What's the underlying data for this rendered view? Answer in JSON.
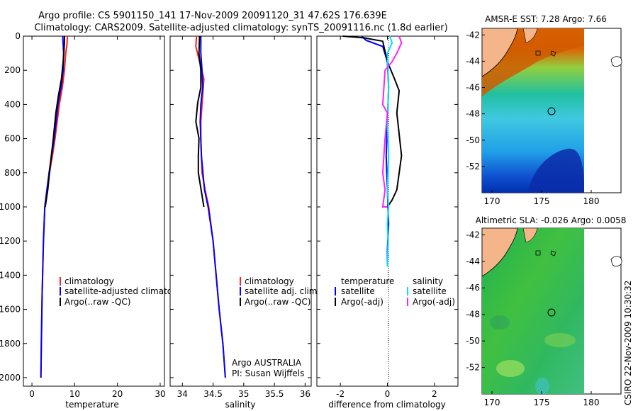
{
  "header": {
    "line1": "Argo profile: CS 5901150_141 17-Nov-2009 20091120_31 47.62S 176.639E",
    "line2": "Climatology: CARS2009. Satellite-adjusted climatology: synTS_20091116.nc (1.8d earlier)"
  },
  "colors": {
    "clim": "#ff2020",
    "sat": "#0000ff",
    "argo": "#000000",
    "sal_sat": "#00e0ff",
    "sal_argo": "#ff20ff"
  },
  "chart_data": [
    {
      "id": "temp",
      "type": "line",
      "xlabel": "temperature",
      "ylabel": "",
      "xlim": [
        -2,
        31
      ],
      "ylim": [
        0,
        2050
      ],
      "y_reversed": true,
      "xticks": [
        0,
        10,
        20,
        30
      ],
      "yticks": [
        0,
        200,
        400,
        600,
        800,
        1000,
        1200,
        1400,
        1600,
        1800,
        2000
      ],
      "legend": {
        "position": "lower-right",
        "entries": [
          {
            "label": "climatology",
            "color": "#ff2020"
          },
          {
            "label": "satellite-adjusted climatology",
            "color": "#0000ff"
          },
          {
            "label": "Argo(..raw -QC)",
            "color": "#000000"
          }
        ]
      },
      "series": [
        {
          "name": "climatology",
          "color": "#ff2020",
          "x": [
            8.3,
            8.2,
            7.9,
            7.6,
            7.1,
            6.4,
            5.4,
            4.8,
            4.1,
            3.5,
            3.0,
            2.7,
            2.4,
            2.2,
            2.1
          ],
          "y": [
            0,
            50,
            100,
            200,
            300,
            400,
            600,
            700,
            800,
            900,
            1000,
            1200,
            1500,
            1800,
            2000
          ]
        },
        {
          "name": "satellite-adjusted",
          "color": "#0000ff",
          "x": [
            7.2,
            7.3,
            7.4,
            7.3,
            6.8,
            6.1,
            5.2,
            4.6,
            4.0,
            3.5,
            3.0,
            2.7,
            2.4,
            2.2,
            2.1
          ],
          "y": [
            0,
            50,
            100,
            200,
            300,
            400,
            600,
            700,
            800,
            900,
            1000,
            1200,
            1500,
            1800,
            2000
          ]
        },
        {
          "name": "Argo",
          "color": "#000000",
          "x": [
            7.6,
            7.6,
            7.5,
            7.3,
            6.9,
            6.2,
            5.6,
            5.0,
            4.3,
            3.7,
            3.1
          ],
          "y": [
            0,
            40,
            80,
            150,
            250,
            350,
            450,
            600,
            750,
            900,
            1000
          ]
        }
      ]
    },
    {
      "id": "salinity",
      "type": "line",
      "xlabel": "salinity",
      "ylabel": "",
      "xlim": [
        33.8,
        36.1
      ],
      "ylim": [
        0,
        2050
      ],
      "y_reversed": true,
      "xticks": [
        34,
        34.5,
        35,
        35.5,
        36
      ],
      "legend": {
        "position": "lower-right",
        "entries": [
          {
            "label": "climatology",
            "color": "#ff2020"
          },
          {
            "label": "satellite adj. clim.",
            "color": "#0000ff"
          },
          {
            "label": "Argo(..raw -QC)",
            "color": "#000000"
          }
        ]
      },
      "annotation": {
        "line1": "Argo AUSTRALIA",
        "line2": "PI: Susan Wijffels"
      },
      "series": [
        {
          "name": "climatology",
          "color": "#ff2020",
          "x": [
            34.23,
            34.22,
            34.28,
            34.35,
            34.33,
            34.3,
            34.3,
            34.32,
            34.37,
            34.43,
            34.5,
            34.55,
            34.6,
            34.66,
            34.7
          ],
          "y": [
            0,
            60,
            150,
            250,
            350,
            500,
            600,
            800,
            900,
            1000,
            1200,
            1400,
            1600,
            1800,
            2000
          ]
        },
        {
          "name": "satellite-adjusted",
          "color": "#0000ff",
          "x": [
            34.3,
            34.3,
            34.32,
            34.33,
            34.3,
            34.29,
            34.31,
            34.36,
            34.42,
            34.5,
            34.55,
            34.6,
            34.66,
            34.7
          ],
          "y": [
            0,
            100,
            200,
            300,
            400,
            500,
            700,
            900,
            1000,
            1200,
            1400,
            1600,
            1800,
            2000
          ]
        },
        {
          "name": "Argo",
          "color": "#000000",
          "x": [
            34.28,
            34.27,
            34.3,
            34.3,
            34.25,
            34.22,
            34.27,
            34.26,
            34.26,
            34.35
          ],
          "y": [
            0,
            100,
            200,
            300,
            390,
            500,
            600,
            700,
            800,
            1000
          ]
        }
      ]
    },
    {
      "id": "difference",
      "type": "line",
      "xlabel": "difference from climatology",
      "ylabel": "",
      "xlim": [
        -3,
        3
      ],
      "ylim": [
        0,
        2050
      ],
      "y_reversed": true,
      "xticks": [
        -2,
        0,
        2
      ],
      "legend": {
        "position": "lower-middle",
        "groups": [
          {
            "title": "temperature",
            "entries": [
              {
                "label": "satellite",
                "color": "#0000ff"
              },
              {
                "label": "Argo(-adj)",
                "color": "#000000"
              }
            ]
          },
          {
            "title": "salinity",
            "entries": [
              {
                "label": "satellite",
                "color": "#00e0ff"
              },
              {
                "label": "Argo(-adj)",
                "color": "#ff20ff"
              }
            ]
          }
        ]
      },
      "series": [
        {
          "name": "temperature satellite",
          "color": "#0000ff",
          "x": [
            -1.1,
            -0.9,
            -0.2,
            0.0,
            0.05,
            0.0,
            -0.05,
            0.0,
            0.05,
            0.0,
            0.0
          ],
          "y": [
            0,
            25,
            60,
            150,
            300,
            500,
            700,
            900,
            1100,
            1250,
            1340
          ]
        },
        {
          "name": "temperature Argo",
          "color": "#000000",
          "x": [
            -1.9,
            -1.0,
            -0.2,
            0.0,
            0.3,
            0.5,
            0.4,
            0.6,
            0.5,
            0.4,
            0.2,
            0.0
          ],
          "y": [
            0,
            10,
            30,
            150,
            250,
            320,
            450,
            700,
            800,
            900,
            960,
            1000
          ]
        },
        {
          "name": "salinity satellite",
          "color": "#00e0ff",
          "x": [
            0.1,
            0.2,
            0.0,
            0.05,
            0.0,
            0.05,
            0.0,
            0.05,
            0.0,
            0.03,
            0.0
          ],
          "y": [
            0,
            40,
            100,
            300,
            500,
            700,
            900,
            1000,
            1100,
            1200,
            1350
          ]
        },
        {
          "name": "salinity Argo",
          "color": "#ff20ff",
          "x": [
            0.5,
            0.6,
            0.4,
            0.2,
            -0.1,
            -0.2,
            0.0,
            -0.1,
            -0.2,
            -0.1,
            -0.2,
            0.0
          ],
          "y": [
            0,
            40,
            100,
            150,
            200,
            400,
            450,
            600,
            800,
            900,
            1000,
            1000
          ]
        }
      ]
    },
    {
      "id": "sst-map",
      "type": "heatmap",
      "title": "AMSR-E SST: 7.28 Argo: 7.66",
      "xlim": [
        169,
        183
      ],
      "ylim": [
        -54,
        -41.5
      ],
      "xticks": [
        170,
        175,
        180
      ],
      "yticks": [
        -42,
        -44,
        -46,
        -48,
        -50,
        -52
      ],
      "marker": {
        "lon": 176.6,
        "lat": -47.6
      }
    },
    {
      "id": "sla-map",
      "type": "heatmap",
      "title": "Altimetric SLA: -0.026 Argo: 0.0058",
      "xlim": [
        169,
        183
      ],
      "ylim": [
        -54,
        -41.5
      ],
      "xticks": [
        170,
        175,
        180
      ],
      "yticks": [
        -42,
        -44,
        -46,
        -48,
        -50,
        -52
      ],
      "marker": {
        "lon": 176.6,
        "lat": -47.6
      }
    }
  ],
  "footer": {
    "stamp": "CSIRO 22-Nov-2009 10:30:32"
  }
}
